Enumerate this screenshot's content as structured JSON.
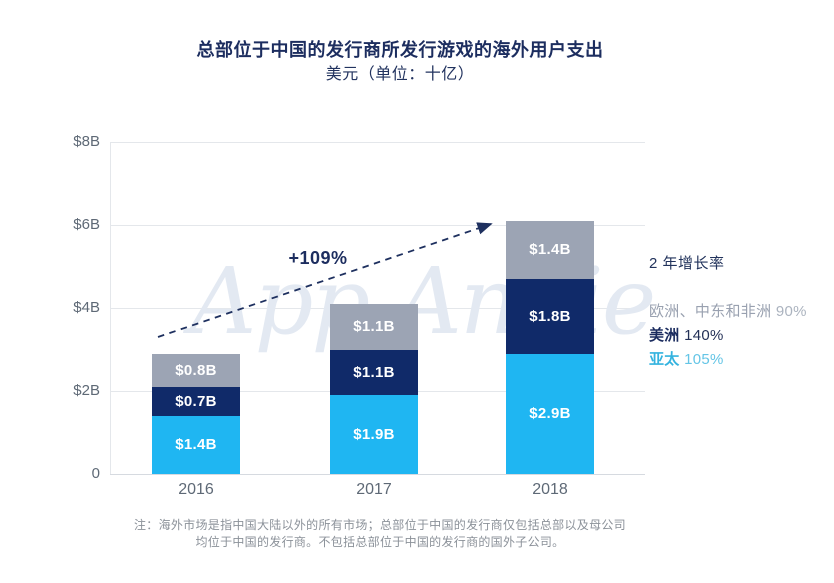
{
  "watermark": "App Annie",
  "chart_data": {
    "type": "bar",
    "stacked": true,
    "title": "总部位于中国的发行商所发行游戏的海外用户支出",
    "subtitle": "美元（单位：十亿）",
    "categories": [
      "2016",
      "2017",
      "2018"
    ],
    "series": [
      {
        "name": "亚太",
        "color": "#1FB6F2",
        "values": [
          1.4,
          1.9,
          2.9
        ],
        "labels": [
          "$1.4B",
          "$1.9B",
          "$2.9B"
        ],
        "growth": "105%"
      },
      {
        "name": "美洲",
        "color": "#102A69",
        "values": [
          0.7,
          1.1,
          1.8
        ],
        "labels": [
          "$0.7B",
          "$1.1B",
          "$1.8B"
        ],
        "growth": "140%"
      },
      {
        "name": "欧洲、中东和非洲",
        "color": "#9CA4B4",
        "values": [
          0.8,
          1.1,
          1.4
        ],
        "labels": [
          "$0.8B",
          "$1.1B",
          "$1.4B"
        ],
        "growth": "90%"
      }
    ],
    "ylim": [
      0,
      8
    ],
    "yticks": [
      "$8B",
      "$6B",
      "$4B",
      "$2B",
      "0"
    ],
    "grid": true,
    "legend_position": "right",
    "annotation": "+109%",
    "annotation_meaning": "total growth 2016 to 2018"
  },
  "legend": {
    "title": "2 年增长率",
    "items": [
      {
        "name": "欧洲、中东和非洲",
        "pct": "90%",
        "name_color": "#99A1B0",
        "pct_color": "#ABB3BF",
        "bold": false
      },
      {
        "name": "美洲",
        "pct": "140%",
        "name_color": "#1B2C5F",
        "pct_color": "#243157",
        "bold": true
      },
      {
        "name": "亚太",
        "pct": "105%",
        "name_color": "#34B3DF",
        "pct_color": "#64C5E6",
        "bold": true
      }
    ]
  },
  "note": {
    "line1": "注：海外市场是指中国大陆以外的所有市场；总部位于中国的发行商仅包括总部以及母公司",
    "line2": "均位于中国的发行商。不包括总部位于中国的发行商的国外子公司。"
  }
}
